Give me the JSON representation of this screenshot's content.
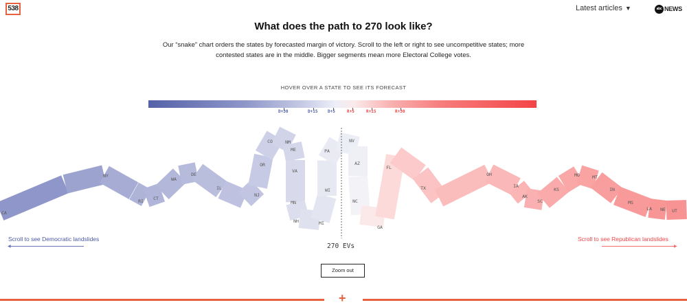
{
  "header": {
    "logo_text": "538",
    "latest_label": "Latest articles",
    "latest_caret": "▼",
    "abc_circle": "abc",
    "abc_text": "NEWS"
  },
  "title": "What does the path to 270 look like?",
  "description": "Our “snake” chart orders the states by forecasted margin of victory. Scroll to the left or right to see uncompetitive states; more contested states are in the middle. Bigger segments mean more Electoral College votes.",
  "hover_prompt": "HOVER OVER A STATE TO SEE ITS FORECAST",
  "scale": {
    "ticks": [
      {
        "label": "D+30",
        "side": "d"
      },
      {
        "label": "D+15",
        "side": "d"
      },
      {
        "label": "D+5",
        "side": "d"
      },
      {
        "label": "R+5",
        "side": "r"
      },
      {
        "label": "R+15",
        "side": "r"
      },
      {
        "label": "R+30",
        "side": "r"
      }
    ]
  },
  "chart_data": {
    "type": "snake",
    "title": "What does the path to 270 look like?",
    "threshold_label": "270 EVs",
    "order": "Democratic landslides (left) to Republican landslides (right), by forecasted margin",
    "states": [
      {
        "label": "CA",
        "side": "D",
        "color": "#8f96c9"
      },
      {
        "label": "",
        "side": "D",
        "color": "#9da3cf"
      },
      {
        "label": "NY",
        "side": "D",
        "color": "#a7acd5"
      },
      {
        "label": "RI",
        "side": "D",
        "color": "#aeb3d8"
      },
      {
        "label": "CT",
        "side": "D",
        "color": "#b0b5d9"
      },
      {
        "label": "WA",
        "side": "D",
        "color": "#b3b7da"
      },
      {
        "label": "DE",
        "side": "D",
        "color": "#b6badb"
      },
      {
        "label": "IL",
        "side": "D",
        "color": "#babedd"
      },
      {
        "label": "",
        "side": "D",
        "color": "#bec1df"
      },
      {
        "label": "NJ",
        "side": "D",
        "color": "#c2c5e1"
      },
      {
        "label": "OR",
        "side": "D",
        "color": "#c7cae4"
      },
      {
        "label": "CO",
        "side": "D",
        "color": "#cdd0e7"
      },
      {
        "label": "NM",
        "side": "D",
        "color": "#d1d4e9"
      },
      {
        "label": "ME",
        "side": "D",
        "color": "#d4d7ea"
      },
      {
        "label": "VA",
        "side": "D",
        "color": "#d8daec"
      },
      {
        "label": "MN",
        "side": "D",
        "color": "#dcdeee"
      },
      {
        "label": "NH",
        "side": "D",
        "color": "#dfe1ef"
      },
      {
        "label": "MI",
        "side": "D",
        "color": "#e3e5f1"
      },
      {
        "label": "WI",
        "side": "D",
        "color": "#e6e8f2"
      },
      {
        "label": "PA",
        "side": "D",
        "color": "#e9eaf4"
      },
      {
        "label": "NV",
        "side": "D",
        "color": "#eceef5"
      },
      {
        "label": "AZ",
        "side": "D",
        "color": "#eff0f6"
      },
      {
        "label": "NC",
        "side": "D",
        "color": "#f2f2f7"
      },
      {
        "label": "GA",
        "side": "R",
        "color": "#fbe9e9"
      },
      {
        "label": "FL",
        "side": "R",
        "color": "#fcdada"
      },
      {
        "label": "TX",
        "side": "R",
        "color": "#fccaca"
      },
      {
        "label": "OH",
        "side": "R",
        "color": "#fbc3c3"
      },
      {
        "label": "IA",
        "side": "R",
        "color": "#fbbcbc"
      },
      {
        "label": "AK",
        "side": "R",
        "color": "#fbb8b8"
      },
      {
        "label": "SC",
        "side": "R",
        "color": "#fbb5b5"
      },
      {
        "label": "KS",
        "side": "R",
        "color": "#fab0b0"
      },
      {
        "label": "MO",
        "side": "R",
        "color": "#faaaaa"
      },
      {
        "label": "MT",
        "side": "R",
        "color": "#faa7a7"
      },
      {
        "label": "IN",
        "side": "R",
        "color": "#f9a3a3"
      },
      {
        "label": "MS",
        "side": "R",
        "color": "#f99e9e"
      },
      {
        "label": "LA",
        "side": "R",
        "color": "#f99a9a"
      },
      {
        "label": "NE",
        "side": "R",
        "color": "#f89696"
      },
      {
        "label": "UT",
        "side": "R",
        "color": "#f89393"
      }
    ]
  },
  "scroll_dem": "Scroll to see Democratic landslides",
  "scroll_rep": "Scroll to see Republican landslides",
  "arrow_left": "◀",
  "arrow_right": "▶",
  "zoom_label": "Zoom out",
  "footer_plus": "+",
  "colors": {
    "accent": "#e8613f",
    "dem": "#5561a8",
    "rep": "#f34446"
  }
}
